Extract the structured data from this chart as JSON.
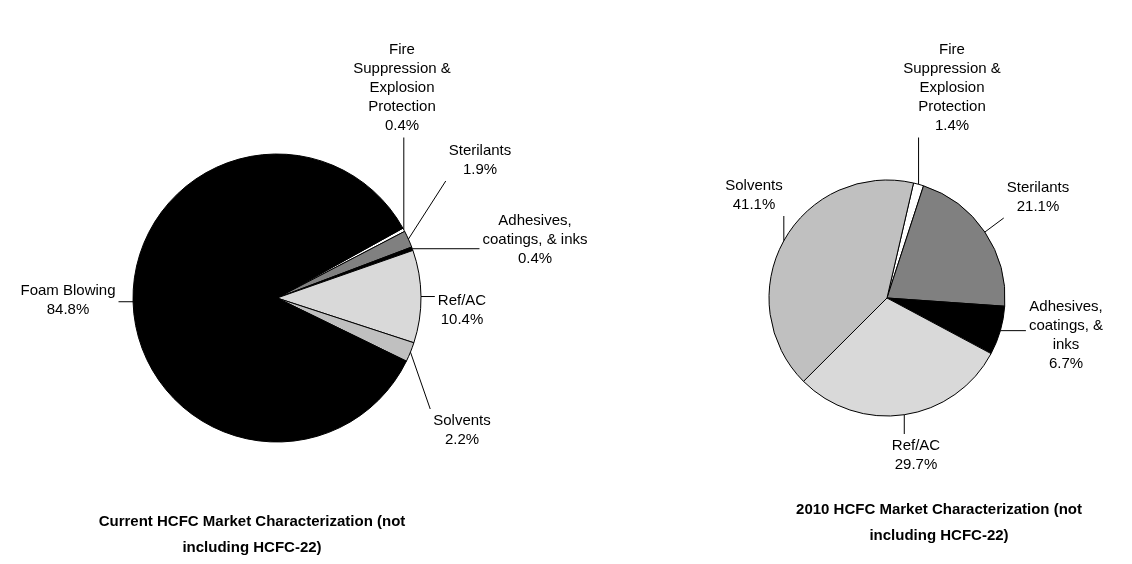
{
  "chart_data": [
    {
      "type": "pie",
      "title": "Current HCFC Market Characterization (not including HCFC-22)",
      "categories": [
        "Fire Suppression & Explosion Protection",
        "Sterilants",
        "Adhesives, coatings, & inks",
        "Ref/AC",
        "Solvents",
        "Foam Blowing"
      ],
      "values": [
        0.4,
        1.9,
        0.4,
        10.4,
        2.2,
        84.8
      ],
      "colors": [
        "#ffffff",
        "#808080",
        "#000000",
        "#d9d9d9",
        "#c0c0c0",
        "#000000"
      ],
      "value_labels": [
        "0.4%",
        "1.9%",
        "0.4%",
        "10.4%",
        "2.2%",
        "84.8%"
      ]
    },
    {
      "type": "pie",
      "title": "2010 HCFC Market Characterization (not including HCFC-22)",
      "categories": [
        "Fire Suppression & Explosion Protection",
        "Sterilants",
        "Adhesives, coatings, & inks",
        "Ref/AC",
        "Solvents"
      ],
      "values": [
        1.4,
        21.1,
        6.7,
        29.7,
        41.1
      ],
      "colors": [
        "#ffffff",
        "#808080",
        "#000000",
        "#d9d9d9",
        "#c0c0c0"
      ],
      "value_labels": [
        "1.4%",
        "21.1%",
        "6.7%",
        "29.7%",
        "41.1%"
      ]
    }
  ]
}
